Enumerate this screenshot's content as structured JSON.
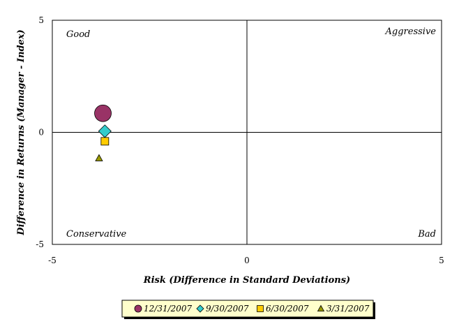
{
  "chart_data": {
    "type": "scatter",
    "title": "",
    "xlabel": "Risk (Difference in Standard Deviations)",
    "ylabel": "Difference in Returns (Manager - Index)",
    "xlim": [
      -5,
      5
    ],
    "ylim": [
      -5,
      5
    ],
    "x_ticks": [
      "-5",
      "0",
      "5"
    ],
    "y_ticks": [
      "5",
      "0",
      "-5"
    ],
    "grid": false,
    "legend_position": "bottom",
    "quadrant_labels": {
      "top_left": "Good",
      "top_right": "Aggressive",
      "bottom_left": "Conservative",
      "bottom_right": "Bad"
    },
    "series": [
      {
        "name": "12/31/2007",
        "marker": "circle",
        "color": "#993366",
        "x": -3.7,
        "y": 0.85
      },
      {
        "name": "9/30/2007",
        "marker": "diamond",
        "color": "#33CCCC",
        "x": -3.65,
        "y": 0.05
      },
      {
        "name": "6/30/2007",
        "marker": "square",
        "color": "#FFCC00",
        "x": -3.65,
        "y": -0.4
      },
      {
        "name": "3/31/2007",
        "marker": "triangle",
        "color": "#999900",
        "x": -3.8,
        "y": -1.15
      }
    ]
  }
}
